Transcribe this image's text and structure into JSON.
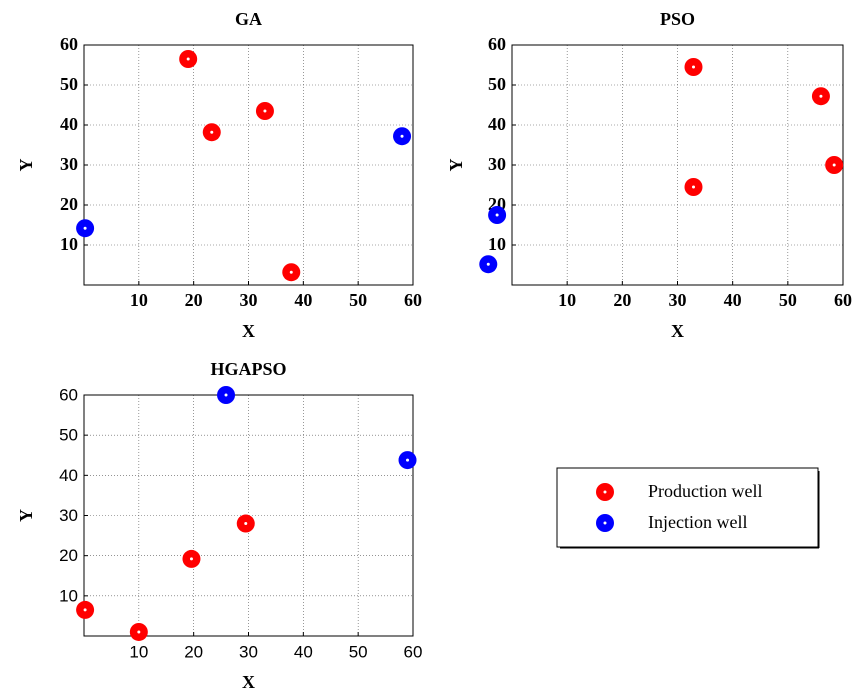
{
  "chart_data": [
    {
      "type": "scatter",
      "title": "GA",
      "x_label": "X",
      "y_label": "Y",
      "xlim": [
        0,
        60
      ],
      "ylim": [
        0,
        60
      ],
      "xticks": [
        10,
        20,
        30,
        40,
        50,
        60
      ],
      "yticks": [
        10,
        20,
        30,
        40,
        50,
        60
      ],
      "grid": true,
      "series": [
        {
          "name": "Production well",
          "color": "#ff0000",
          "x": [
            19,
            23.3,
            33,
            37.8
          ],
          "y": [
            56.5,
            38.2,
            43.5,
            3.2
          ]
        },
        {
          "name": "Injection well",
          "color": "#0000ff",
          "x": [
            0.2,
            58
          ],
          "y": [
            14.2,
            37.2
          ]
        }
      ]
    },
    {
      "type": "scatter",
      "title": "PSO",
      "x_label": "X",
      "y_label": "Y",
      "xlim": [
        0,
        60
      ],
      "ylim": [
        0,
        60
      ],
      "xticks": [
        10,
        20,
        30,
        40,
        50,
        60
      ],
      "yticks": [
        10,
        20,
        30,
        40,
        50,
        60
      ],
      "grid": true,
      "series": [
        {
          "color": "#ff0000",
          "x": [
            32.9,
            56,
            58.4,
            32.9
          ],
          "y": [
            54.5,
            47.2,
            30,
            24.5
          ]
        },
        {
          "color": "#0000ff",
          "x": [
            -4.3,
            -2.7
          ],
          "y": [
            5.2,
            17.5
          ]
        }
      ]
    },
    {
      "type": "scatter",
      "title": "HGAPSO",
      "x_label": "X",
      "y_label": "Y",
      "xlim": [
        0,
        60
      ],
      "ylim": [
        0,
        60
      ],
      "xticks": [
        10,
        20,
        30,
        40,
        50,
        60
      ],
      "yticks": [
        10,
        20,
        30,
        40,
        50,
        60
      ],
      "grid": true,
      "series": [
        {
          "color": "#ff0000",
          "x": [
            0.2,
            10,
            19.6,
            29.5
          ],
          "y": [
            6.5,
            1,
            19.2,
            28
          ]
        },
        {
          "color": "#0000ff",
          "x": [
            25.9,
            59
          ],
          "y": [
            60,
            43.8
          ]
        }
      ]
    }
  ]
}
